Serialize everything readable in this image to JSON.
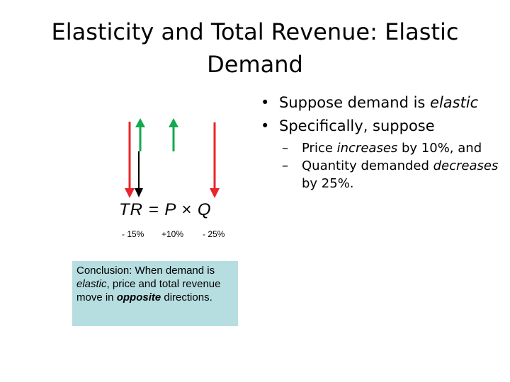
{
  "slide": {
    "title": "Elasticity and Total Revenue: Elastic Demand",
    "bullets": [
      {
        "pre": "Suppose demand is ",
        "em": "elastic"
      },
      {
        "text": "Specifically, suppose"
      }
    ],
    "sub_bullets": [
      {
        "pre": "Price ",
        "em": "increases",
        "post": " by 10%, and"
      },
      {
        "pre": "Quantity demanded ",
        "em": "decreases",
        "post": " by 25%."
      }
    ]
  },
  "equation": {
    "text": "TR = P × Q",
    "changes": {
      "tr": "- 15%",
      "p": "+10%",
      "q": "- 25%"
    }
  },
  "conclusion": {
    "p1": "Conclusion: When demand is ",
    "em1": "elastic",
    "p2": ", price and total revenue move in ",
    "em2": "opposite",
    "p3": " directions."
  },
  "colors": {
    "red_arrow": "#e8262b",
    "green_arrow": "#14a94e",
    "black_arrow": "#000000",
    "conclusion_bg": "#b6dde0"
  }
}
